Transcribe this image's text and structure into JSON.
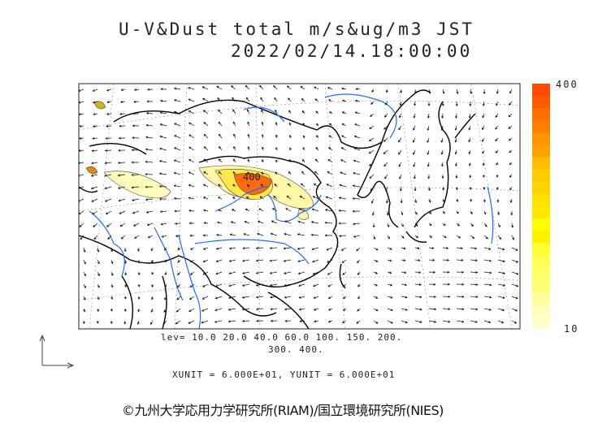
{
  "title": {
    "line1": "U-V&Dust total m/s&ug/m3 JST",
    "line2": "2022/02/14.18:00:00"
  },
  "legend": {
    "levels_line1": "lev= 10.0 20.0 40.0 60.0 100. 150. 200.",
    "levels_line2": "300. 400.",
    "max_label": "400",
    "min_label": "10",
    "colors": [
      "#ff4a00",
      "#ff5a00",
      "#ff6e00",
      "#ff7e00",
      "#ff9400",
      "#ffa000",
      "#ffbc00",
      "#ffcc00",
      "#ffd200",
      "#ffe000",
      "#ffe800",
      "#ffff00",
      "#fff200",
      "#ffff33",
      "#ffff55",
      "#ffff66",
      "#ffff77",
      "#ffff99",
      "#ffffbb",
      "#ffffcc"
    ]
  },
  "map": {
    "contour_label": "400",
    "coast_color": "#000000",
    "river_color": "#1e6cff"
  },
  "units": "XUNIT = 6.000E+01, YUNIT = 6.000E+01",
  "credit": "©九州大学応用力学研究所(RIAM)/国立環境研究所(NIES)"
}
